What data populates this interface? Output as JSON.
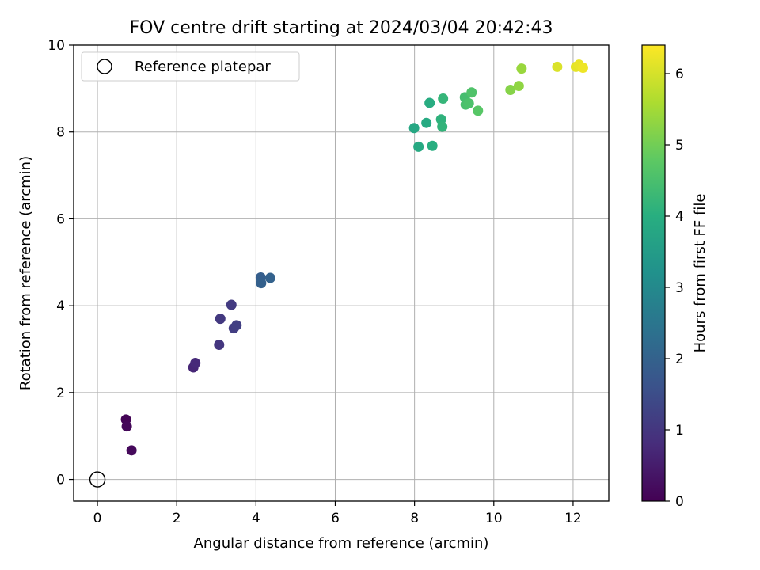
{
  "chart_data": {
    "type": "scatter",
    "title": "FOV centre drift starting at 2024/03/04 20:42:43",
    "xlabel": "Angular distance from reference (arcmin)",
    "ylabel": "Rotation from reference (arcmin)",
    "colorbar_label": "Hours from first FF file",
    "xlim": [
      -0.6,
      12.9
    ],
    "ylim": [
      -0.5,
      10
    ],
    "clim": [
      0,
      6.4
    ],
    "x_ticks": [
      "0",
      "2",
      "4",
      "6",
      "8",
      "10",
      "12"
    ],
    "y_ticks": [
      "0",
      "2",
      "4",
      "6",
      "8",
      "10"
    ],
    "colorbar_ticks": [
      "0",
      "1",
      "2",
      "3",
      "4",
      "5",
      "6"
    ],
    "grid": true,
    "legend_position": "upper left",
    "colormap": "viridis",
    "reference": {
      "label": "Reference platepar",
      "x": 0,
      "y": 0
    },
    "points": [
      {
        "x": 0.72,
        "y": 1.38,
        "hours": 0.05
      },
      {
        "x": 0.74,
        "y": 1.22,
        "hours": 0.1
      },
      {
        "x": 0.86,
        "y": 0.67,
        "hours": 0.15
      },
      {
        "x": 2.42,
        "y": 2.58,
        "hours": 0.7
      },
      {
        "x": 2.47,
        "y": 2.68,
        "hours": 0.75
      },
      {
        "x": 3.07,
        "y": 3.1,
        "hours": 1.0
      },
      {
        "x": 3.1,
        "y": 3.7,
        "hours": 1.05
      },
      {
        "x": 3.38,
        "y": 4.02,
        "hours": 1.1
      },
      {
        "x": 3.44,
        "y": 3.48,
        "hours": 1.15
      },
      {
        "x": 3.51,
        "y": 3.55,
        "hours": 1.2
      },
      {
        "x": 4.12,
        "y": 4.65,
        "hours": 1.9
      },
      {
        "x": 4.13,
        "y": 4.52,
        "hours": 1.95
      },
      {
        "x": 4.36,
        "y": 4.64,
        "hours": 2.0
      },
      {
        "x": 7.99,
        "y": 8.09,
        "hours": 3.8
      },
      {
        "x": 8.1,
        "y": 7.66,
        "hours": 3.85
      },
      {
        "x": 8.3,
        "y": 8.21,
        "hours": 3.9
      },
      {
        "x": 8.38,
        "y": 8.67,
        "hours": 3.95
      },
      {
        "x": 8.45,
        "y": 7.68,
        "hours": 4.0
      },
      {
        "x": 8.67,
        "y": 8.29,
        "hours": 4.1
      },
      {
        "x": 8.7,
        "y": 8.12,
        "hours": 4.15
      },
      {
        "x": 8.72,
        "y": 8.77,
        "hours": 4.2
      },
      {
        "x": 9.27,
        "y": 8.8,
        "hours": 4.45
      },
      {
        "x": 9.29,
        "y": 8.63,
        "hours": 4.5
      },
      {
        "x": 9.37,
        "y": 8.66,
        "hours": 4.55
      },
      {
        "x": 9.44,
        "y": 8.91,
        "hours": 4.6
      },
      {
        "x": 9.6,
        "y": 8.49,
        "hours": 4.7
      },
      {
        "x": 10.42,
        "y": 8.97,
        "hours": 5.2
      },
      {
        "x": 10.63,
        "y": 9.06,
        "hours": 5.3
      },
      {
        "x": 10.7,
        "y": 9.46,
        "hours": 5.4
      },
      {
        "x": 11.6,
        "y": 9.5,
        "hours": 6.05
      },
      {
        "x": 12.07,
        "y": 9.5,
        "hours": 6.15
      },
      {
        "x": 12.15,
        "y": 9.55,
        "hours": 6.2
      },
      {
        "x": 12.25,
        "y": 9.48,
        "hours": 6.25
      }
    ]
  }
}
